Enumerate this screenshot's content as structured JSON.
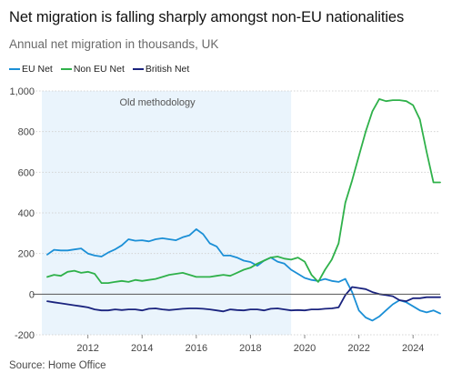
{
  "chart_data": {
    "type": "line",
    "title": "Net migration is falling sharply amongst non-EU nationalities",
    "subtitle": "Annual net migration in thousands, UK",
    "source": "Source: Home Office",
    "annotation": "Old methodology",
    "shaded_region_x": [
      2010.3,
      2019.5
    ],
    "xlim": [
      2010.3,
      2025.0
    ],
    "ylim": [
      -200,
      1000
    ],
    "x_ticks": [
      2012,
      2014,
      2016,
      2018,
      2020,
      2022,
      2024
    ],
    "y_ticks": [
      -200,
      0,
      200,
      400,
      600,
      800,
      1000
    ],
    "y_tick_labels": [
      "-200",
      "0",
      "200",
      "400",
      "600",
      "800",
      "1,000"
    ],
    "grid": true,
    "legend_position": "top-left",
    "series": [
      {
        "name": "EU Net",
        "color": "#1b8fd6",
        "x": [
          2010.5,
          2010.75,
          2011,
          2011.25,
          2011.5,
          2011.75,
          2012,
          2012.25,
          2012.5,
          2012.75,
          2013,
          2013.25,
          2013.5,
          2013.75,
          2014,
          2014.25,
          2014.5,
          2014.75,
          2015,
          2015.25,
          2015.5,
          2015.75,
          2016,
          2016.25,
          2016.5,
          2016.75,
          2017,
          2017.25,
          2017.5,
          2017.75,
          2018,
          2018.25,
          2018.5,
          2018.75,
          2019,
          2019.25,
          2019.5,
          2019.75,
          2020,
          2020.25,
          2020.5,
          2020.75,
          2021,
          2021.25,
          2021.5,
          2021.75,
          2022,
          2022.25,
          2022.5,
          2022.75,
          2023,
          2023.25,
          2023.5,
          2023.75,
          2024,
          2024.25,
          2024.5,
          2024.75,
          2025
        ],
        "values": [
          195,
          218,
          215,
          215,
          220,
          225,
          200,
          190,
          185,
          205,
          220,
          240,
          270,
          263,
          265,
          260,
          270,
          275,
          270,
          265,
          280,
          290,
          320,
          295,
          250,
          235,
          190,
          190,
          180,
          165,
          158,
          140,
          165,
          180,
          160,
          150,
          120,
          100,
          80,
          70,
          65,
          75,
          65,
          60,
          75,
          10,
          -80,
          -115,
          -130,
          -110,
          -80,
          -50,
          -30,
          -40,
          -60,
          -80,
          -90,
          -80,
          -95
        ]
      },
      {
        "name": "Non EU Net",
        "color": "#2fb14a",
        "x": [
          2010.5,
          2010.75,
          2011,
          2011.25,
          2011.5,
          2011.75,
          2012,
          2012.25,
          2012.5,
          2012.75,
          2013,
          2013.25,
          2013.5,
          2013.75,
          2014,
          2014.25,
          2014.5,
          2014.75,
          2015,
          2015.25,
          2015.5,
          2015.75,
          2016,
          2016.25,
          2016.5,
          2016.75,
          2017,
          2017.25,
          2017.5,
          2017.75,
          2018,
          2018.25,
          2018.5,
          2018.75,
          2019,
          2019.25,
          2019.5,
          2019.75,
          2020,
          2020.25,
          2020.5,
          2020.75,
          2021,
          2021.25,
          2021.5,
          2021.75,
          2022,
          2022.25,
          2022.5,
          2022.75,
          2023,
          2023.25,
          2023.5,
          2023.75,
          2024,
          2024.25,
          2024.5,
          2024.75,
          2025
        ],
        "values": [
          85,
          95,
          90,
          110,
          115,
          105,
          110,
          100,
          55,
          55,
          60,
          65,
          60,
          70,
          65,
          70,
          75,
          85,
          95,
          100,
          105,
          95,
          85,
          85,
          85,
          90,
          95,
          90,
          105,
          120,
          130,
          150,
          165,
          180,
          185,
          175,
          170,
          180,
          160,
          95,
          60,
          120,
          170,
          250,
          450,
          560,
          680,
          800,
          900,
          960,
          950,
          955,
          955,
          950,
          930,
          860,
          700,
          550,
          550
        ]
      },
      {
        "name": "British Net",
        "color": "#1a237e",
        "x": [
          2010.5,
          2010.75,
          2011,
          2011.25,
          2011.5,
          2011.75,
          2012,
          2012.25,
          2012.5,
          2012.75,
          2013,
          2013.25,
          2013.5,
          2013.75,
          2014,
          2014.25,
          2014.5,
          2014.75,
          2015,
          2015.25,
          2015.5,
          2015.75,
          2016,
          2016.25,
          2016.5,
          2016.75,
          2017,
          2017.25,
          2017.5,
          2017.75,
          2018,
          2018.25,
          2018.5,
          2018.75,
          2019,
          2019.25,
          2019.5,
          2019.75,
          2020,
          2020.25,
          2020.5,
          2020.75,
          2021,
          2021.25,
          2021.5,
          2021.75,
          2022,
          2022.25,
          2022.5,
          2022.75,
          2023,
          2023.25,
          2023.5,
          2023.75,
          2024,
          2024.25,
          2024.5,
          2024.75,
          2025
        ],
        "values": [
          -35,
          -40,
          -45,
          -50,
          -55,
          -60,
          -65,
          -75,
          -80,
          -80,
          -75,
          -78,
          -75,
          -75,
          -80,
          -72,
          -70,
          -75,
          -78,
          -75,
          -72,
          -70,
          -70,
          -72,
          -75,
          -80,
          -85,
          -75,
          -78,
          -80,
          -75,
          -75,
          -80,
          -72,
          -70,
          -75,
          -80,
          -78,
          -80,
          -75,
          -75,
          -72,
          -70,
          -65,
          -5,
          35,
          30,
          25,
          10,
          0,
          -5,
          -10,
          -30,
          -35,
          -20,
          -20,
          -15,
          -15,
          -15
        ]
      }
    ]
  }
}
